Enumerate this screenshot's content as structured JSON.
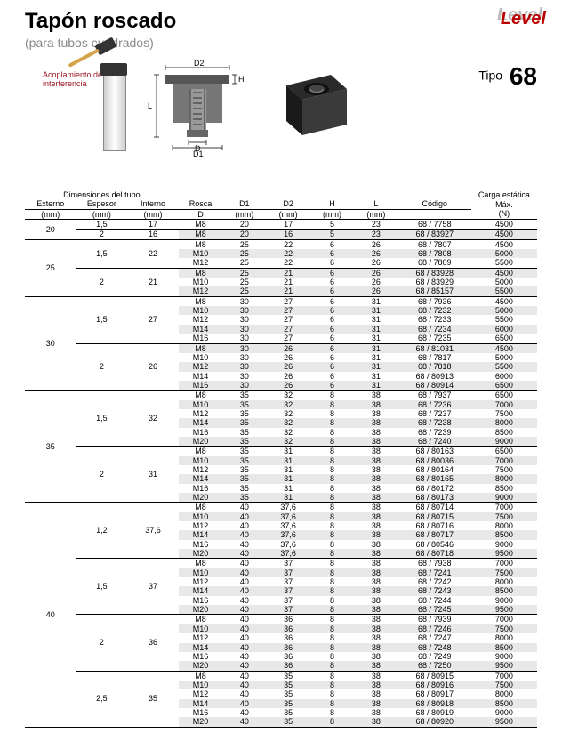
{
  "page": {
    "title": "Tapón roscado",
    "subtitle": "(para tubos cuadrados)",
    "tipo_label": "Tipo",
    "tipo_number": "68",
    "logo": "Level",
    "annotation": "Acoplamiento de interferencia",
    "dim_labels": {
      "D": "D",
      "D1": "D1",
      "D2": "D2",
      "H": "H",
      "L": "L"
    }
  },
  "table": {
    "headers": {
      "group": "Dimensiones del tubo",
      "externo": "Externo",
      "externo_unit": "(mm)",
      "espesor": "Espesor",
      "espesor_unit": "(mm)",
      "interno": "Interno",
      "interno_unit": "(mm)",
      "rosca": "Rosca",
      "rosca_unit": "D",
      "d1": "D1",
      "d1_unit": "(mm)",
      "d2": "D2",
      "d2_unit": "(mm)",
      "h": "H",
      "h_unit": "(mm)",
      "l": "L",
      "l_unit": "(mm)",
      "codigo": "Código",
      "carga": "Carga estática Máx.",
      "carga_unit": "(N)"
    },
    "groups": [
      {
        "externo": "20",
        "subgroups": [
          {
            "espesor": "1,5",
            "interno": "17",
            "rows": [
              [
                "M8",
                "20",
                "17",
                "5",
                "23",
                "68 / 7758",
                "4500"
              ]
            ]
          },
          {
            "espesor": "2",
            "interno": "16",
            "rows": [
              [
                "M8",
                "20",
                "16",
                "5",
                "23",
                "68 / 83927",
                "4500"
              ]
            ]
          }
        ]
      },
      {
        "externo": "25",
        "subgroups": [
          {
            "espesor": "1,5",
            "interno": "22",
            "rows": [
              [
                "M8",
                "25",
                "22",
                "6",
                "26",
                "68 / 7807",
                "4500"
              ],
              [
                "M10",
                "25",
                "22",
                "6",
                "26",
                "68 / 7808",
                "5000"
              ],
              [
                "M12",
                "25",
                "22",
                "6",
                "26",
                "68 / 7809",
                "5500"
              ]
            ]
          },
          {
            "espesor": "2",
            "interno": "21",
            "rows": [
              [
                "M8",
                "25",
                "21",
                "6",
                "26",
                "68 / 83928",
                "4500"
              ],
              [
                "M10",
                "25",
                "21",
                "6",
                "26",
                "68 / 83929",
                "5000"
              ],
              [
                "M12",
                "25",
                "21",
                "6",
                "26",
                "68 / 85157",
                "5500"
              ]
            ]
          }
        ]
      },
      {
        "externo": "30",
        "subgroups": [
          {
            "espesor": "1,5",
            "interno": "27",
            "rows": [
              [
                "M8",
                "30",
                "27",
                "6",
                "31",
                "68 / 7936",
                "4500"
              ],
              [
                "M10",
                "30",
                "27",
                "6",
                "31",
                "68 / 7232",
                "5000"
              ],
              [
                "M12",
                "30",
                "27",
                "6",
                "31",
                "68 / 7233",
                "5500"
              ],
              [
                "M14",
                "30",
                "27",
                "6",
                "31",
                "68 / 7234",
                "6000"
              ],
              [
                "M16",
                "30",
                "27",
                "6",
                "31",
                "68 / 7235",
                "6500"
              ]
            ]
          },
          {
            "espesor": "2",
            "interno": "26",
            "rows": [
              [
                "M8",
                "30",
                "26",
                "6",
                "31",
                "68 / 81031",
                "4500"
              ],
              [
                "M10",
                "30",
                "26",
                "6",
                "31",
                "68 / 7817",
                "5000"
              ],
              [
                "M12",
                "30",
                "26",
                "6",
                "31",
                "68 / 7818",
                "5500"
              ],
              [
                "M14",
                "30",
                "26",
                "6",
                "31",
                "68 / 80913",
                "6000"
              ],
              [
                "M16",
                "30",
                "26",
                "6",
                "31",
                "68 / 80914",
                "6500"
              ]
            ]
          }
        ]
      },
      {
        "externo": "35",
        "subgroups": [
          {
            "espesor": "1,5",
            "interno": "32",
            "rows": [
              [
                "M8",
                "35",
                "32",
                "8",
                "38",
                "68 / 7937",
                "6500"
              ],
              [
                "M10",
                "35",
                "32",
                "8",
                "38",
                "68 / 7236",
                "7000"
              ],
              [
                "M12",
                "35",
                "32",
                "8",
                "38",
                "68 / 7237",
                "7500"
              ],
              [
                "M14",
                "35",
                "32",
                "8",
                "38",
                "68 / 7238",
                "8000"
              ],
              [
                "M16",
                "35",
                "32",
                "8",
                "38",
                "68 / 7239",
                "8500"
              ],
              [
                "M20",
                "35",
                "32",
                "8",
                "38",
                "68 / 7240",
                "9000"
              ]
            ]
          },
          {
            "espesor": "2",
            "interno": "31",
            "rows": [
              [
                "M8",
                "35",
                "31",
                "8",
                "38",
                "68 / 80163",
                "6500"
              ],
              [
                "M10",
                "35",
                "31",
                "8",
                "38",
                "68 / 80036",
                "7000"
              ],
              [
                "M12",
                "35",
                "31",
                "8",
                "38",
                "68 / 80164",
                "7500"
              ],
              [
                "M14",
                "35",
                "31",
                "8",
                "38",
                "68 / 80165",
                "8000"
              ],
              [
                "M16",
                "35",
                "31",
                "8",
                "38",
                "68 / 80172",
                "8500"
              ],
              [
                "M20",
                "35",
                "31",
                "8",
                "38",
                "68 / 80173",
                "9000"
              ]
            ]
          }
        ]
      },
      {
        "externo": "40",
        "subgroups": [
          {
            "espesor": "1,2",
            "interno": "37,6",
            "rows": [
              [
                "M8",
                "40",
                "37,6",
                "8",
                "38",
                "68 / 80714",
                "7000"
              ],
              [
                "M10",
                "40",
                "37,6",
                "8",
                "38",
                "68 / 80715",
                "7500"
              ],
              [
                "M12",
                "40",
                "37,6",
                "8",
                "38",
                "68 / 80716",
                "8000"
              ],
              [
                "M14",
                "40",
                "37,6",
                "8",
                "38",
                "68 / 80717",
                "8500"
              ],
              [
                "M16",
                "40",
                "37,6",
                "8",
                "38",
                "68 / 80546",
                "9000"
              ],
              [
                "M20",
                "40",
                "37,6",
                "8",
                "38",
                "68 / 80718",
                "9500"
              ]
            ]
          },
          {
            "espesor": "1,5",
            "interno": "37",
            "rows": [
              [
                "M8",
                "40",
                "37",
                "8",
                "38",
                "68 / 7938",
                "7000"
              ],
              [
                "M10",
                "40",
                "37",
                "8",
                "38",
                "68 / 7241",
                "7500"
              ],
              [
                "M12",
                "40",
                "37",
                "8",
                "38",
                "68 / 7242",
                "8000"
              ],
              [
                "M14",
                "40",
                "37",
                "8",
                "38",
                "68 / 7243",
                "8500"
              ],
              [
                "M16",
                "40",
                "37",
                "8",
                "38",
                "68 / 7244",
                "9000"
              ],
              [
                "M20",
                "40",
                "37",
                "8",
                "38",
                "68 / 7245",
                "9500"
              ]
            ]
          },
          {
            "espesor": "2",
            "interno": "36",
            "rows": [
              [
                "M8",
                "40",
                "36",
                "8",
                "38",
                "68 / 7939",
                "7000"
              ],
              [
                "M10",
                "40",
                "36",
                "8",
                "38",
                "68 / 7246",
                "7500"
              ],
              [
                "M12",
                "40",
                "36",
                "8",
                "38",
                "68 / 7247",
                "8000"
              ],
              [
                "M14",
                "40",
                "36",
                "8",
                "38",
                "68 / 7248",
                "8500"
              ],
              [
                "M16",
                "40",
                "36",
                "8",
                "38",
                "68 / 7249",
                "9000"
              ],
              [
                "M20",
                "40",
                "36",
                "8",
                "38",
                "68 / 7250",
                "9500"
              ]
            ]
          },
          {
            "espesor": "2,5",
            "interno": "35",
            "rows": [
              [
                "M8",
                "40",
                "35",
                "8",
                "38",
                "68 / 80915",
                "7000"
              ],
              [
                "M10",
                "40",
                "35",
                "8",
                "38",
                "68 / 80916",
                "7500"
              ],
              [
                "M12",
                "40",
                "35",
                "8",
                "38",
                "68 / 80917",
                "8000"
              ],
              [
                "M14",
                "40",
                "35",
                "8",
                "38",
                "68 / 80918",
                "8500"
              ],
              [
                "M16",
                "40",
                "35",
                "8",
                "38",
                "68 / 80919",
                "9000"
              ],
              [
                "M20",
                "40",
                "35",
                "8",
                "38",
                "68 / 80920",
                "9500"
              ]
            ]
          }
        ]
      }
    ]
  }
}
